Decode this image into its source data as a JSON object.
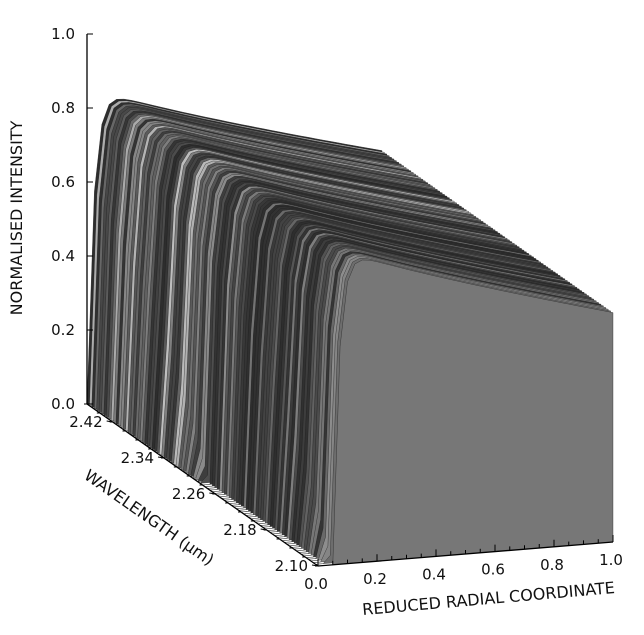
{
  "chart_data": {
    "type": "surface3d",
    "title": "",
    "zlabel": "NORMALISED INTENSITY",
    "ylabel": "WAVELENGTH (μm)",
    "xlabel": "REDUCED RADIAL COORDINATE",
    "x_ticks": [
      "0.0",
      "0.2",
      "0.4",
      "0.6",
      "0.8",
      "1.0"
    ],
    "y_ticks": [
      "2.42",
      "2.34",
      "2.26",
      "2.18",
      "2.10"
    ],
    "z_ticks": [
      "0.0",
      "0.2",
      "0.4",
      "0.6",
      "0.8",
      "1.0"
    ],
    "x_range": [
      0,
      1
    ],
    "y_range": [
      2.1,
      2.46
    ],
    "z_range": [
      0,
      1
    ],
    "surface": {
      "description_values": {
        "plateau_start_intensity": 0.86,
        "plateau_end_intensity": 0.62,
        "edge_radial_coordinate_at_2_46um": 0.0,
        "edge_radial_coordinate_at_2_10um": 0.05
      }
    },
    "colors": {
      "surface_dark": "#2e2e2e",
      "surface_light": "#d4d4d4"
    }
  }
}
